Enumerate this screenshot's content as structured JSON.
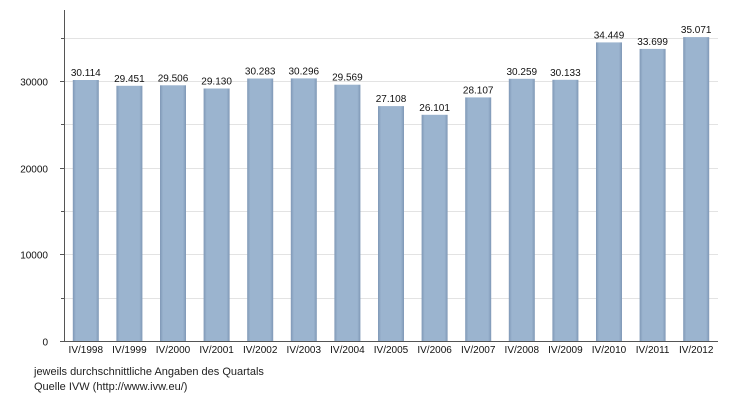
{
  "chart_data": {
    "type": "bar",
    "categories": [
      "IV/1998",
      "IV/1999",
      "IV/2000",
      "IV/2001",
      "IV/2002",
      "IV/2003",
      "IV/2004",
      "IV/2005",
      "IV/2006",
      "IV/2007",
      "IV/2008",
      "IV/2009",
      "IV/2010",
      "IV/2011",
      "IV/2012"
    ],
    "values": [
      30114,
      29451,
      29506,
      29130,
      30283,
      30296,
      29569,
      27108,
      26101,
      28107,
      30259,
      30133,
      34449,
      33699,
      35071
    ],
    "value_labels": [
      "30.114",
      "29.451",
      "29.506",
      "29.130",
      "30.283",
      "30.296",
      "29.569",
      "27.108",
      "26.101",
      "28.107",
      "30.259",
      "30.133",
      "34.449",
      "33.699",
      "35.071"
    ],
    "ylim": [
      0,
      37500
    ],
    "yticks": [
      0,
      10000,
      20000,
      30000
    ],
    "ytick_labels": [
      "0",
      "10000",
      "20000",
      "30000"
    ],
    "minor_yticks": [
      5000,
      15000,
      25000,
      35000
    ],
    "grid": true,
    "bar_color": "#9bb4cf",
    "bar_shade_color": "#7f98b6",
    "grid_color": "#e3e3e3",
    "xlabel": "",
    "ylabel": ""
  },
  "footnotes": {
    "line1": "jeweils durchschnittliche Angaben des Quartals",
    "line2": "Quelle IVW (http://www.ivw.eu/)"
  }
}
